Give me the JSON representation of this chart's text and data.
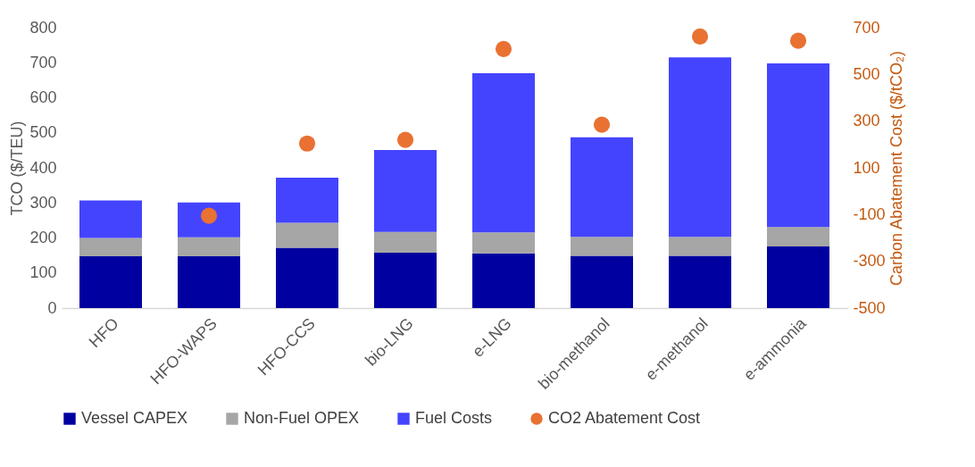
{
  "chart_data": {
    "type": "bar",
    "stacked": true,
    "categories": [
      "HFO",
      "HFO-WAPS",
      "HFO-CCS",
      "bio-LNG",
      "e-LNG",
      "bio-methanol",
      "e-methanol",
      "e-ammonia"
    ],
    "series": [
      {
        "name": "Vessel CAPEX",
        "color": "#0000a0",
        "values": [
          148,
          148,
          172,
          158,
          156,
          149,
          149,
          176
        ]
      },
      {
        "name": "Non-Fuel OPEX",
        "color": "#a6a6a6",
        "values": [
          52,
          54,
          71,
          59,
          60,
          54,
          54,
          55
        ]
      },
      {
        "name": "Fuel Costs",
        "color": "#4444ff",
        "values": [
          107,
          99,
          129,
          234,
          454,
          284,
          512,
          467
        ]
      },
      {
        "name": "CO2 Abatement Cost",
        "type": "scatter",
        "axis": "y2",
        "color": "#e97132",
        "values": [
          null,
          -105,
          204,
          220,
          609,
          285,
          662,
          644
        ]
      }
    ],
    "ylabel": "TCO ($/TEU)",
    "y2label": "Carbon Abatement Cost ($/tCO₂)",
    "ylim": [
      0,
      800
    ],
    "yticks": [
      0,
      100,
      200,
      300,
      400,
      500,
      600,
      700,
      800
    ],
    "y2lim": [
      -500,
      700
    ],
    "y2ticks": [
      -500,
      -300,
      -100,
      100,
      300,
      500,
      700
    ],
    "grid": false,
    "legend": "bottom",
    "marker": "circle"
  }
}
